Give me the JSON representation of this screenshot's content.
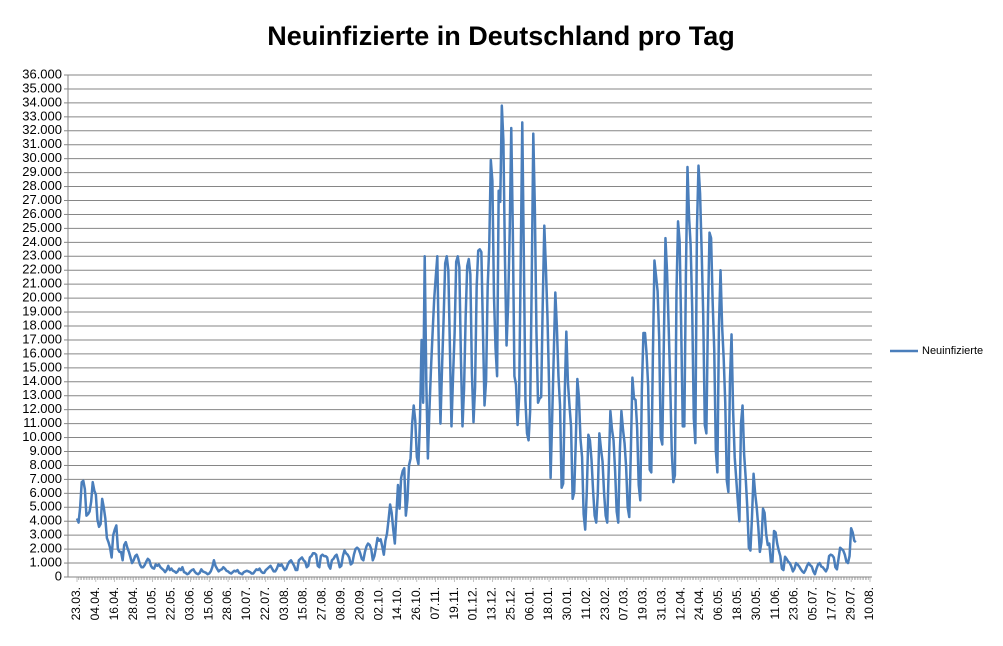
{
  "chart_data": {
    "type": "line",
    "title": "Neuinfizierte in Deutschland pro Tag",
    "categories": [
      "23.03.",
      null,
      null,
      null,
      null,
      null,
      null,
      null,
      null,
      null,
      null,
      null,
      "04.04.",
      null,
      null,
      null,
      null,
      null,
      null,
      null,
      null,
      null,
      null,
      null,
      "16.04.",
      null,
      null,
      null,
      null,
      null,
      null,
      null,
      null,
      null,
      null,
      null,
      "28.04.",
      null,
      null,
      null,
      null,
      null,
      null,
      null,
      null,
      null,
      null,
      null,
      "10.05.",
      null,
      null,
      null,
      null,
      null,
      null,
      null,
      null,
      null,
      null,
      null,
      "22.05.",
      null,
      null,
      null,
      null,
      null,
      null,
      null,
      null,
      null,
      null,
      null,
      "03.06.",
      null,
      null,
      null,
      null,
      null,
      null,
      null,
      null,
      null,
      null,
      null,
      "15.06.",
      null,
      null,
      null,
      null,
      null,
      null,
      null,
      null,
      null,
      null,
      null,
      "28.06.",
      null,
      null,
      null,
      null,
      null,
      null,
      null,
      null,
      null,
      null,
      null,
      "10.07.",
      null,
      null,
      null,
      null,
      null,
      null,
      null,
      null,
      null,
      null,
      null,
      "22.07.",
      null,
      null,
      null,
      null,
      null,
      null,
      null,
      null,
      null,
      null,
      null,
      "03.08.",
      null,
      null,
      null,
      null,
      null,
      null,
      null,
      null,
      null,
      null,
      null,
      "15.08.",
      null,
      null,
      null,
      null,
      null,
      null,
      null,
      null,
      null,
      null,
      null,
      "27.08.",
      null,
      null,
      null,
      null,
      null,
      null,
      null,
      null,
      null,
      null,
      null,
      "08.09.",
      null,
      null,
      null,
      null,
      null,
      null,
      null,
      null,
      null,
      null,
      null,
      "20.09.",
      null,
      null,
      null,
      null,
      null,
      null,
      null,
      null,
      null,
      null,
      null,
      "02.10.",
      null,
      null,
      null,
      null,
      null,
      null,
      null,
      null,
      null,
      null,
      null,
      "14.10.",
      null,
      null,
      null,
      null,
      null,
      null,
      null,
      null,
      null,
      null,
      null,
      "26.10.",
      null,
      null,
      null,
      null,
      null,
      null,
      null,
      null,
      null,
      null,
      null,
      "07.11.",
      null,
      null,
      null,
      null,
      null,
      null,
      null,
      null,
      null,
      null,
      null,
      "19.11.",
      null,
      null,
      null,
      null,
      null,
      null,
      null,
      null,
      null,
      null,
      null,
      "01.12.",
      null,
      null,
      null,
      null,
      null,
      null,
      null,
      null,
      null,
      null,
      null,
      "13.12.",
      null,
      null,
      null,
      null,
      null,
      null,
      null,
      null,
      null,
      null,
      null,
      "25.12.",
      null,
      null,
      null,
      null,
      null,
      null,
      null,
      null,
      null,
      null,
      null,
      "06.01.",
      null,
      null,
      null,
      null,
      null,
      null,
      null,
      null,
      null,
      null,
      null,
      "18.01.",
      null,
      null,
      null,
      null,
      null,
      null,
      null,
      null,
      null,
      null,
      null,
      "30.01.",
      null,
      null,
      null,
      null,
      null,
      null,
      null,
      null,
      null,
      null,
      null,
      "11.02.",
      null,
      null,
      null,
      null,
      null,
      null,
      null,
      null,
      null,
      null,
      null,
      "23.02.",
      null,
      null,
      null,
      null,
      null,
      null,
      null,
      null,
      null,
      null,
      null,
      "07.03.",
      null,
      null,
      null,
      null,
      null,
      null,
      null,
      null,
      null,
      null,
      null,
      "19.03.",
      null,
      null,
      null,
      null,
      null,
      null,
      null,
      null,
      null,
      null,
      null,
      "31.03.",
      null,
      null,
      null,
      null,
      null,
      null,
      null,
      null,
      null,
      null,
      null,
      "12.04.",
      null,
      null,
      null,
      null,
      null,
      null,
      null,
      null,
      null,
      null,
      null,
      "24.04.",
      null,
      null,
      null,
      null,
      null,
      null,
      null,
      null,
      null,
      null,
      null,
      "06.05.",
      null,
      null,
      null,
      null,
      null,
      null,
      null,
      null,
      null,
      null,
      null,
      "18.05.",
      null,
      null,
      null,
      null,
      null,
      null,
      null,
      null,
      null,
      null,
      null,
      "30.05.",
      null,
      null,
      null,
      null,
      null,
      null,
      null,
      null,
      null,
      null,
      null,
      "11.06.",
      null,
      null,
      null,
      null,
      null,
      null,
      null,
      null,
      null,
      null,
      null,
      "23.06.",
      null,
      null,
      null,
      null,
      null,
      null,
      null,
      null,
      null,
      null,
      null,
      "05.07.",
      null,
      null,
      null,
      null,
      null,
      null,
      null,
      null,
      null,
      null,
      null,
      "17.07.",
      null,
      null,
      null,
      null,
      null,
      null,
      null,
      null,
      null,
      null,
      null,
      "29.07.",
      null,
      null,
      null,
      null,
      null,
      null,
      null,
      null,
      null,
      null,
      null,
      "10.08."
    ],
    "series": [
      {
        "name": "Neuinfizierte",
        "color": "#4a7ebb",
        "values": [
          4200,
          3900,
          5000,
          6800,
          6900,
          6300,
          4400,
          4500,
          4700,
          5400,
          6800,
          6200,
          5900,
          4100,
          3600,
          3800,
          5600,
          5000,
          4200,
          2800,
          2500,
          2100,
          1400,
          3000,
          3400,
          3700,
          2000,
          1800,
          1800,
          1200,
          2300,
          2500,
          2100,
          1800,
          1400,
          1000,
          1200,
          1500,
          1600,
          1300,
          900,
          700,
          700,
          850,
          1100,
          1300,
          1200,
          800,
          650,
          600,
          900,
          800,
          900,
          700,
          600,
          500,
          350,
          500,
          800,
          500,
          600,
          450,
          400,
          300,
          400,
          600,
          500,
          700,
          350,
          300,
          200,
          250,
          400,
          500,
          550,
          350,
          250,
          200,
          300,
          550,
          400,
          350,
          300,
          200,
          250,
          400,
          700,
          1200,
          800,
          600,
          400,
          500,
          550,
          700,
          600,
          450,
          400,
          300,
          250,
          350,
          450,
          400,
          500,
          300,
          250,
          200,
          350,
          400,
          450,
          400,
          350,
          250,
          250,
          400,
          550,
          500,
          600,
          400,
          300,
          300,
          500,
          600,
          700,
          800,
          600,
          400,
          400,
          600,
          900,
          800,
          900,
          700,
          500,
          600,
          900,
          1100,
          1200,
          1000,
          800,
          500,
          500,
          1200,
          1300,
          1400,
          1200,
          1100,
          700,
          800,
          1400,
          1500,
          1700,
          1700,
          1600,
          800,
          700,
          1500,
          1600,
          1500,
          1500,
          1400,
          800,
          600,
          1200,
          1300,
          1500,
          1600,
          1200,
          700,
          800,
          1500,
          1900,
          1700,
          1600,
          1400,
          900,
          1000,
          1600,
          2000,
          2100,
          2000,
          1700,
          1300,
          1200,
          1800,
          2200,
          2400,
          2300,
          2000,
          1200,
          1500,
          2100,
          2800,
          2600,
          2700,
          2200,
          1600,
          2600,
          3100,
          4100,
          5200,
          4600,
          3400,
          2400,
          4500,
          6600,
          4900,
          7100,
          7600,
          7800,
          4400,
          5500,
          8000,
          8500,
          11000,
          12300,
          11200,
          8600,
          8100,
          11300,
          17000,
          12500,
          23000,
          14000,
          8500,
          12000,
          15000,
          17500,
          19900,
          21500,
          23000,
          16000,
          11000,
          15000,
          18500,
          22500,
          23000,
          22000,
          16500,
          10800,
          14400,
          17500,
          22600,
          23000,
          22200,
          15700,
          10800,
          13500,
          18600,
          22300,
          22800,
          21700,
          14600,
          11100,
          13600,
          20800,
          23400,
          23500,
          23300,
          17700,
          12300,
          14100,
          20800,
          23700,
          29900,
          28400,
          20200,
          16400,
          14400,
          27700,
          26900,
          33800,
          31300,
          22700,
          16600,
          19500,
          24700,
          32200,
          24700,
          14400,
          13800,
          10900,
          12900,
          22500,
          32600,
          22900,
          12700,
          10300,
          9800,
          11900,
          21200,
          31800,
          26400,
          17600,
          12500,
          12800,
          12900,
          19600,
          25200,
          22200,
          18700,
          13900,
          7100,
          11400,
          15900,
          20400,
          17900,
          14400,
          12300,
          6400,
          6700,
          13200,
          17600,
          14000,
          12300,
          10800,
          5600,
          6100,
          9700,
          14200,
          12900,
          9900,
          8600,
          4500,
          3400,
          6100,
          10200,
          9800,
          8400,
          6200,
          4400,
          3900,
          6000,
          10300,
          9200,
          8300,
          6000,
          4400,
          3900,
          8000,
          11900,
          10600,
          9800,
          7600,
          4700,
          3900,
          9000,
          11900,
          10600,
          9600,
          7900,
          5000,
          4300,
          9000,
          14300,
          12800,
          12700,
          10700,
          6600,
          5500,
          13400,
          17500,
          17500,
          16000,
          13700,
          7700,
          7500,
          15800,
          22700,
          21600,
          20500,
          17200,
          10000,
          9500,
          17000,
          24300,
          21900,
          18100,
          14000,
          9000,
          6800,
          7300,
          20400,
          25500,
          24100,
          17900,
          10800,
          10800,
          21700,
          29400,
          25800,
          23800,
          19200,
          11400,
          9600,
          24900,
          29500,
          27500,
          23400,
          18800,
          10900,
          10300,
          18700,
          24700,
          24300,
          19700,
          16300,
          9100,
          7500,
          18000,
          22000,
          18000,
          15700,
          12500,
          6900,
          6100,
          14100,
          17400,
          11900,
          8600,
          7000,
          5400,
          4000,
          11000,
          12300,
          8800,
          7100,
          5000,
          2100,
          1900,
          4300,
          7400,
          6000,
          5000,
          3600,
          1800,
          2500,
          4900,
          4600,
          3100,
          2300,
          2400,
          1100,
          1100,
          3300,
          3200,
          2400,
          1900,
          1500,
          600,
          500,
          1450,
          1300,
          1100,
          1000,
          750,
          400,
          600,
          1000,
          900,
          750,
          560,
          400,
          300,
          500,
          800,
          1000,
          850,
          750,
          400,
          200,
          600,
          900,
          1000,
          750,
          700,
          550,
          400,
          650,
          1500,
          1600,
          1550,
          1400,
          700,
          550,
          1300,
          2100,
          2000,
          1900,
          1600,
          1100,
          1000,
          1500,
          3500,
          3200,
          2600,
          2500,
          null,
          null,
          null,
          null,
          null,
          null,
          null,
          null,
          null
        ]
      }
    ],
    "ylim": [
      0,
      36000
    ],
    "yticks": [
      0,
      {
        "value": 1000,
        "label": "1.000"
      },
      {
        "value": 2000,
        "label": "2.000"
      },
      {
        "value": 3000,
        "label": "3.000"
      },
      {
        "value": 4000,
        "label": "4.000"
      },
      {
        "value": 5000,
        "label": "5.000"
      },
      {
        "value": 6000,
        "label": "6.000"
      },
      {
        "value": 7000,
        "label": "7.000"
      },
      {
        "value": 8000,
        "label": "8.000"
      },
      {
        "value": 9000,
        "label": "9.000"
      },
      {
        "value": 10000,
        "label": "10.000"
      },
      {
        "value": 11000,
        "label": "11.000"
      },
      {
        "value": 12000,
        "label": "12.000"
      },
      {
        "value": 13000,
        "label": "13.000"
      },
      {
        "value": 14000,
        "label": "14.000"
      },
      {
        "value": 15000,
        "label": "15.000"
      },
      {
        "value": 16000,
        "label": "16.000"
      },
      {
        "value": 17000,
        "label": "17.000"
      },
      {
        "value": 18000,
        "label": "18.000"
      },
      {
        "value": 19000,
        "label": "19.000"
      },
      {
        "value": 20000,
        "label": "20.000"
      },
      {
        "value": 21000,
        "label": "21.000"
      },
      {
        "value": 22000,
        "label": "22.000"
      },
      {
        "value": 23000,
        "label": "23.000"
      },
      {
        "value": 24000,
        "label": "24.000"
      },
      {
        "value": 25000,
        "label": "25.000"
      },
      {
        "value": 26000,
        "label": "26.000"
      },
      {
        "value": 27000,
        "label": "27.000"
      },
      {
        "value": 28000,
        "label": "28.000"
      },
      {
        "value": 29000,
        "label": "29.000"
      },
      {
        "value": 30000,
        "label": "30.000"
      },
      {
        "value": 31000,
        "label": "31.000"
      },
      {
        "value": 32000,
        "label": "32.000"
      },
      {
        "value": 33000,
        "label": "33.000"
      },
      {
        "value": 34000,
        "label": "34.000"
      },
      {
        "value": 35000,
        "label": "35.000"
      },
      {
        "value": 36000,
        "label": "36.000"
      }
    ],
    "grid": true,
    "legend": "right"
  }
}
